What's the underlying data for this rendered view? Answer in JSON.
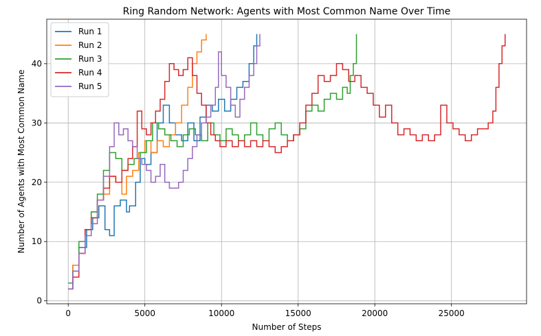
{
  "chart_data": {
    "type": "line",
    "title": "Ring Random Network: Agents with Most Common Name Over Time",
    "xlabel": "Number of Steps",
    "ylabel": "Number of Agents with Most Common Name",
    "xlim": [
      -1400,
      29900
    ],
    "ylim": [
      -0.5,
      47.5
    ],
    "xticks": [
      0,
      5000,
      10000,
      15000,
      20000,
      25000
    ],
    "yticks": [
      0,
      10,
      20,
      30,
      40
    ],
    "grid": true,
    "legend_position": "top-left",
    "series": [
      {
        "name": "Run 1",
        "color": "#1f77b4",
        "points": [
          [
            0,
            2
          ],
          [
            300,
            6
          ],
          [
            700,
            9
          ],
          [
            1200,
            12
          ],
          [
            1600,
            14
          ],
          [
            2000,
            16
          ],
          [
            2400,
            12
          ],
          [
            2700,
            11
          ],
          [
            3000,
            16
          ],
          [
            3400,
            17
          ],
          [
            3800,
            15
          ],
          [
            4000,
            16
          ],
          [
            4400,
            20
          ],
          [
            4700,
            24
          ],
          [
            5000,
            23
          ],
          [
            5400,
            25
          ],
          [
            5800,
            30
          ],
          [
            6200,
            33
          ],
          [
            6600,
            30
          ],
          [
            7000,
            28
          ],
          [
            7400,
            27
          ],
          [
            7800,
            30
          ],
          [
            8200,
            27
          ],
          [
            8600,
            31
          ],
          [
            9000,
            33
          ],
          [
            9400,
            32
          ],
          [
            9800,
            34
          ],
          [
            10200,
            32
          ],
          [
            10600,
            34
          ],
          [
            11000,
            36
          ],
          [
            11400,
            37
          ],
          [
            11800,
            40
          ],
          [
            12100,
            43
          ],
          [
            12300,
            45
          ]
        ]
      },
      {
        "name": "Run 2",
        "color": "#ff7f0e",
        "points": [
          [
            0,
            3
          ],
          [
            300,
            6
          ],
          [
            700,
            8
          ],
          [
            1100,
            12
          ],
          [
            1500,
            15
          ],
          [
            1900,
            17
          ],
          [
            2300,
            18
          ],
          [
            2700,
            21
          ],
          [
            3100,
            20
          ],
          [
            3500,
            18
          ],
          [
            3800,
            21
          ],
          [
            4200,
            22
          ],
          [
            4600,
            25
          ],
          [
            5000,
            27
          ],
          [
            5400,
            25
          ],
          [
            5800,
            27
          ],
          [
            6200,
            26
          ],
          [
            6600,
            28
          ],
          [
            7000,
            30
          ],
          [
            7400,
            33
          ],
          [
            7800,
            36
          ],
          [
            8100,
            40
          ],
          [
            8400,
            42
          ],
          [
            8700,
            44
          ],
          [
            9000,
            45
          ]
        ]
      },
      {
        "name": "Run 3",
        "color": "#2ca02c",
        "points": [
          [
            0,
            3
          ],
          [
            300,
            5
          ],
          [
            700,
            10
          ],
          [
            1100,
            12
          ],
          [
            1500,
            15
          ],
          [
            1900,
            18
          ],
          [
            2300,
            22
          ],
          [
            2700,
            25
          ],
          [
            3100,
            24
          ],
          [
            3500,
            22
          ],
          [
            3900,
            23
          ],
          [
            4300,
            24
          ],
          [
            4700,
            25
          ],
          [
            5100,
            27
          ],
          [
            5500,
            30
          ],
          [
            5900,
            29
          ],
          [
            6300,
            28
          ],
          [
            6700,
            27
          ],
          [
            7100,
            26
          ],
          [
            7500,
            28
          ],
          [
            7900,
            29
          ],
          [
            8300,
            28
          ],
          [
            8700,
            27
          ],
          [
            9100,
            30
          ],
          [
            9500,
            28
          ],
          [
            9900,
            27
          ],
          [
            10300,
            29
          ],
          [
            10700,
            28
          ],
          [
            11100,
            27
          ],
          [
            11500,
            28
          ],
          [
            11900,
            30
          ],
          [
            12300,
            28
          ],
          [
            12700,
            27
          ],
          [
            13100,
            29
          ],
          [
            13500,
            30
          ],
          [
            13900,
            28
          ],
          [
            14300,
            27
          ],
          [
            14700,
            28
          ],
          [
            15100,
            29
          ],
          [
            15500,
            32
          ],
          [
            15900,
            33
          ],
          [
            16300,
            32
          ],
          [
            16700,
            34
          ],
          [
            17100,
            35
          ],
          [
            17500,
            34
          ],
          [
            17900,
            36
          ],
          [
            18200,
            35
          ],
          [
            18400,
            38
          ],
          [
            18600,
            40
          ],
          [
            18800,
            45
          ]
        ]
      },
      {
        "name": "Run 4",
        "color": "#d62728",
        "points": [
          [
            0,
            2
          ],
          [
            300,
            4
          ],
          [
            700,
            8
          ],
          [
            1100,
            12
          ],
          [
            1500,
            14
          ],
          [
            1900,
            17
          ],
          [
            2300,
            19
          ],
          [
            2700,
            21
          ],
          [
            3100,
            20
          ],
          [
            3500,
            22
          ],
          [
            3900,
            24
          ],
          [
            4200,
            26
          ],
          [
            4500,
            32
          ],
          [
            4800,
            29
          ],
          [
            5100,
            28
          ],
          [
            5400,
            30
          ],
          [
            5700,
            32
          ],
          [
            6000,
            34
          ],
          [
            6300,
            37
          ],
          [
            6600,
            40
          ],
          [
            6900,
            39
          ],
          [
            7200,
            38
          ],
          [
            7500,
            39
          ],
          [
            7800,
            41
          ],
          [
            8100,
            38
          ],
          [
            8400,
            35
          ],
          [
            8700,
            33
          ],
          [
            9000,
            30
          ],
          [
            9300,
            28
          ],
          [
            9600,
            27
          ],
          [
            9900,
            26
          ],
          [
            10300,
            27
          ],
          [
            10700,
            26
          ],
          [
            11100,
            27
          ],
          [
            11500,
            26
          ],
          [
            11900,
            27
          ],
          [
            12300,
            26
          ],
          [
            12700,
            27
          ],
          [
            13100,
            26
          ],
          [
            13500,
            25
          ],
          [
            13900,
            26
          ],
          [
            14300,
            27
          ],
          [
            14700,
            28
          ],
          [
            15100,
            30
          ],
          [
            15500,
            33
          ],
          [
            15900,
            35
          ],
          [
            16300,
            38
          ],
          [
            16700,
            37
          ],
          [
            17100,
            38
          ],
          [
            17500,
            40
          ],
          [
            17900,
            39
          ],
          [
            18300,
            37
          ],
          [
            18700,
            38
          ],
          [
            19100,
            36
          ],
          [
            19500,
            35
          ],
          [
            19900,
            33
          ],
          [
            20300,
            31
          ],
          [
            20700,
            33
          ],
          [
            21100,
            30
          ],
          [
            21500,
            28
          ],
          [
            21900,
            29
          ],
          [
            22300,
            28
          ],
          [
            22700,
            27
          ],
          [
            23100,
            28
          ],
          [
            23500,
            27
          ],
          [
            23900,
            28
          ],
          [
            24300,
            33
          ],
          [
            24700,
            30
          ],
          [
            25100,
            29
          ],
          [
            25500,
            28
          ],
          [
            25900,
            27
          ],
          [
            26300,
            28
          ],
          [
            26700,
            29
          ],
          [
            27100,
            29
          ],
          [
            27400,
            30
          ],
          [
            27700,
            32
          ],
          [
            27900,
            36
          ],
          [
            28100,
            40
          ],
          [
            28300,
            43
          ],
          [
            28500,
            45
          ]
        ]
      },
      {
        "name": "Run 5",
        "color": "#9467bd",
        "points": [
          [
            0,
            2
          ],
          [
            300,
            5
          ],
          [
            700,
            8
          ],
          [
            1100,
            11
          ],
          [
            1500,
            13
          ],
          [
            1900,
            17
          ],
          [
            2300,
            21
          ],
          [
            2700,
            26
          ],
          [
            3000,
            30
          ],
          [
            3300,
            28
          ],
          [
            3600,
            29
          ],
          [
            3900,
            27
          ],
          [
            4200,
            26
          ],
          [
            4500,
            24
          ],
          [
            4800,
            23
          ],
          [
            5100,
            22
          ],
          [
            5400,
            20
          ],
          [
            5700,
            21
          ],
          [
            6000,
            23
          ],
          [
            6300,
            20
          ],
          [
            6600,
            19
          ],
          [
            6900,
            19
          ],
          [
            7200,
            20
          ],
          [
            7500,
            22
          ],
          [
            7800,
            24
          ],
          [
            8100,
            26
          ],
          [
            8400,
            28
          ],
          [
            8700,
            30
          ],
          [
            9000,
            31
          ],
          [
            9300,
            33
          ],
          [
            9600,
            36
          ],
          [
            9800,
            42
          ],
          [
            10000,
            38
          ],
          [
            10300,
            36
          ],
          [
            10600,
            33
          ],
          [
            10900,
            31
          ],
          [
            11200,
            34
          ],
          [
            11500,
            36
          ],
          [
            11800,
            38
          ],
          [
            12100,
            40
          ],
          [
            12300,
            43
          ],
          [
            12500,
            45
          ]
        ]
      }
    ]
  }
}
